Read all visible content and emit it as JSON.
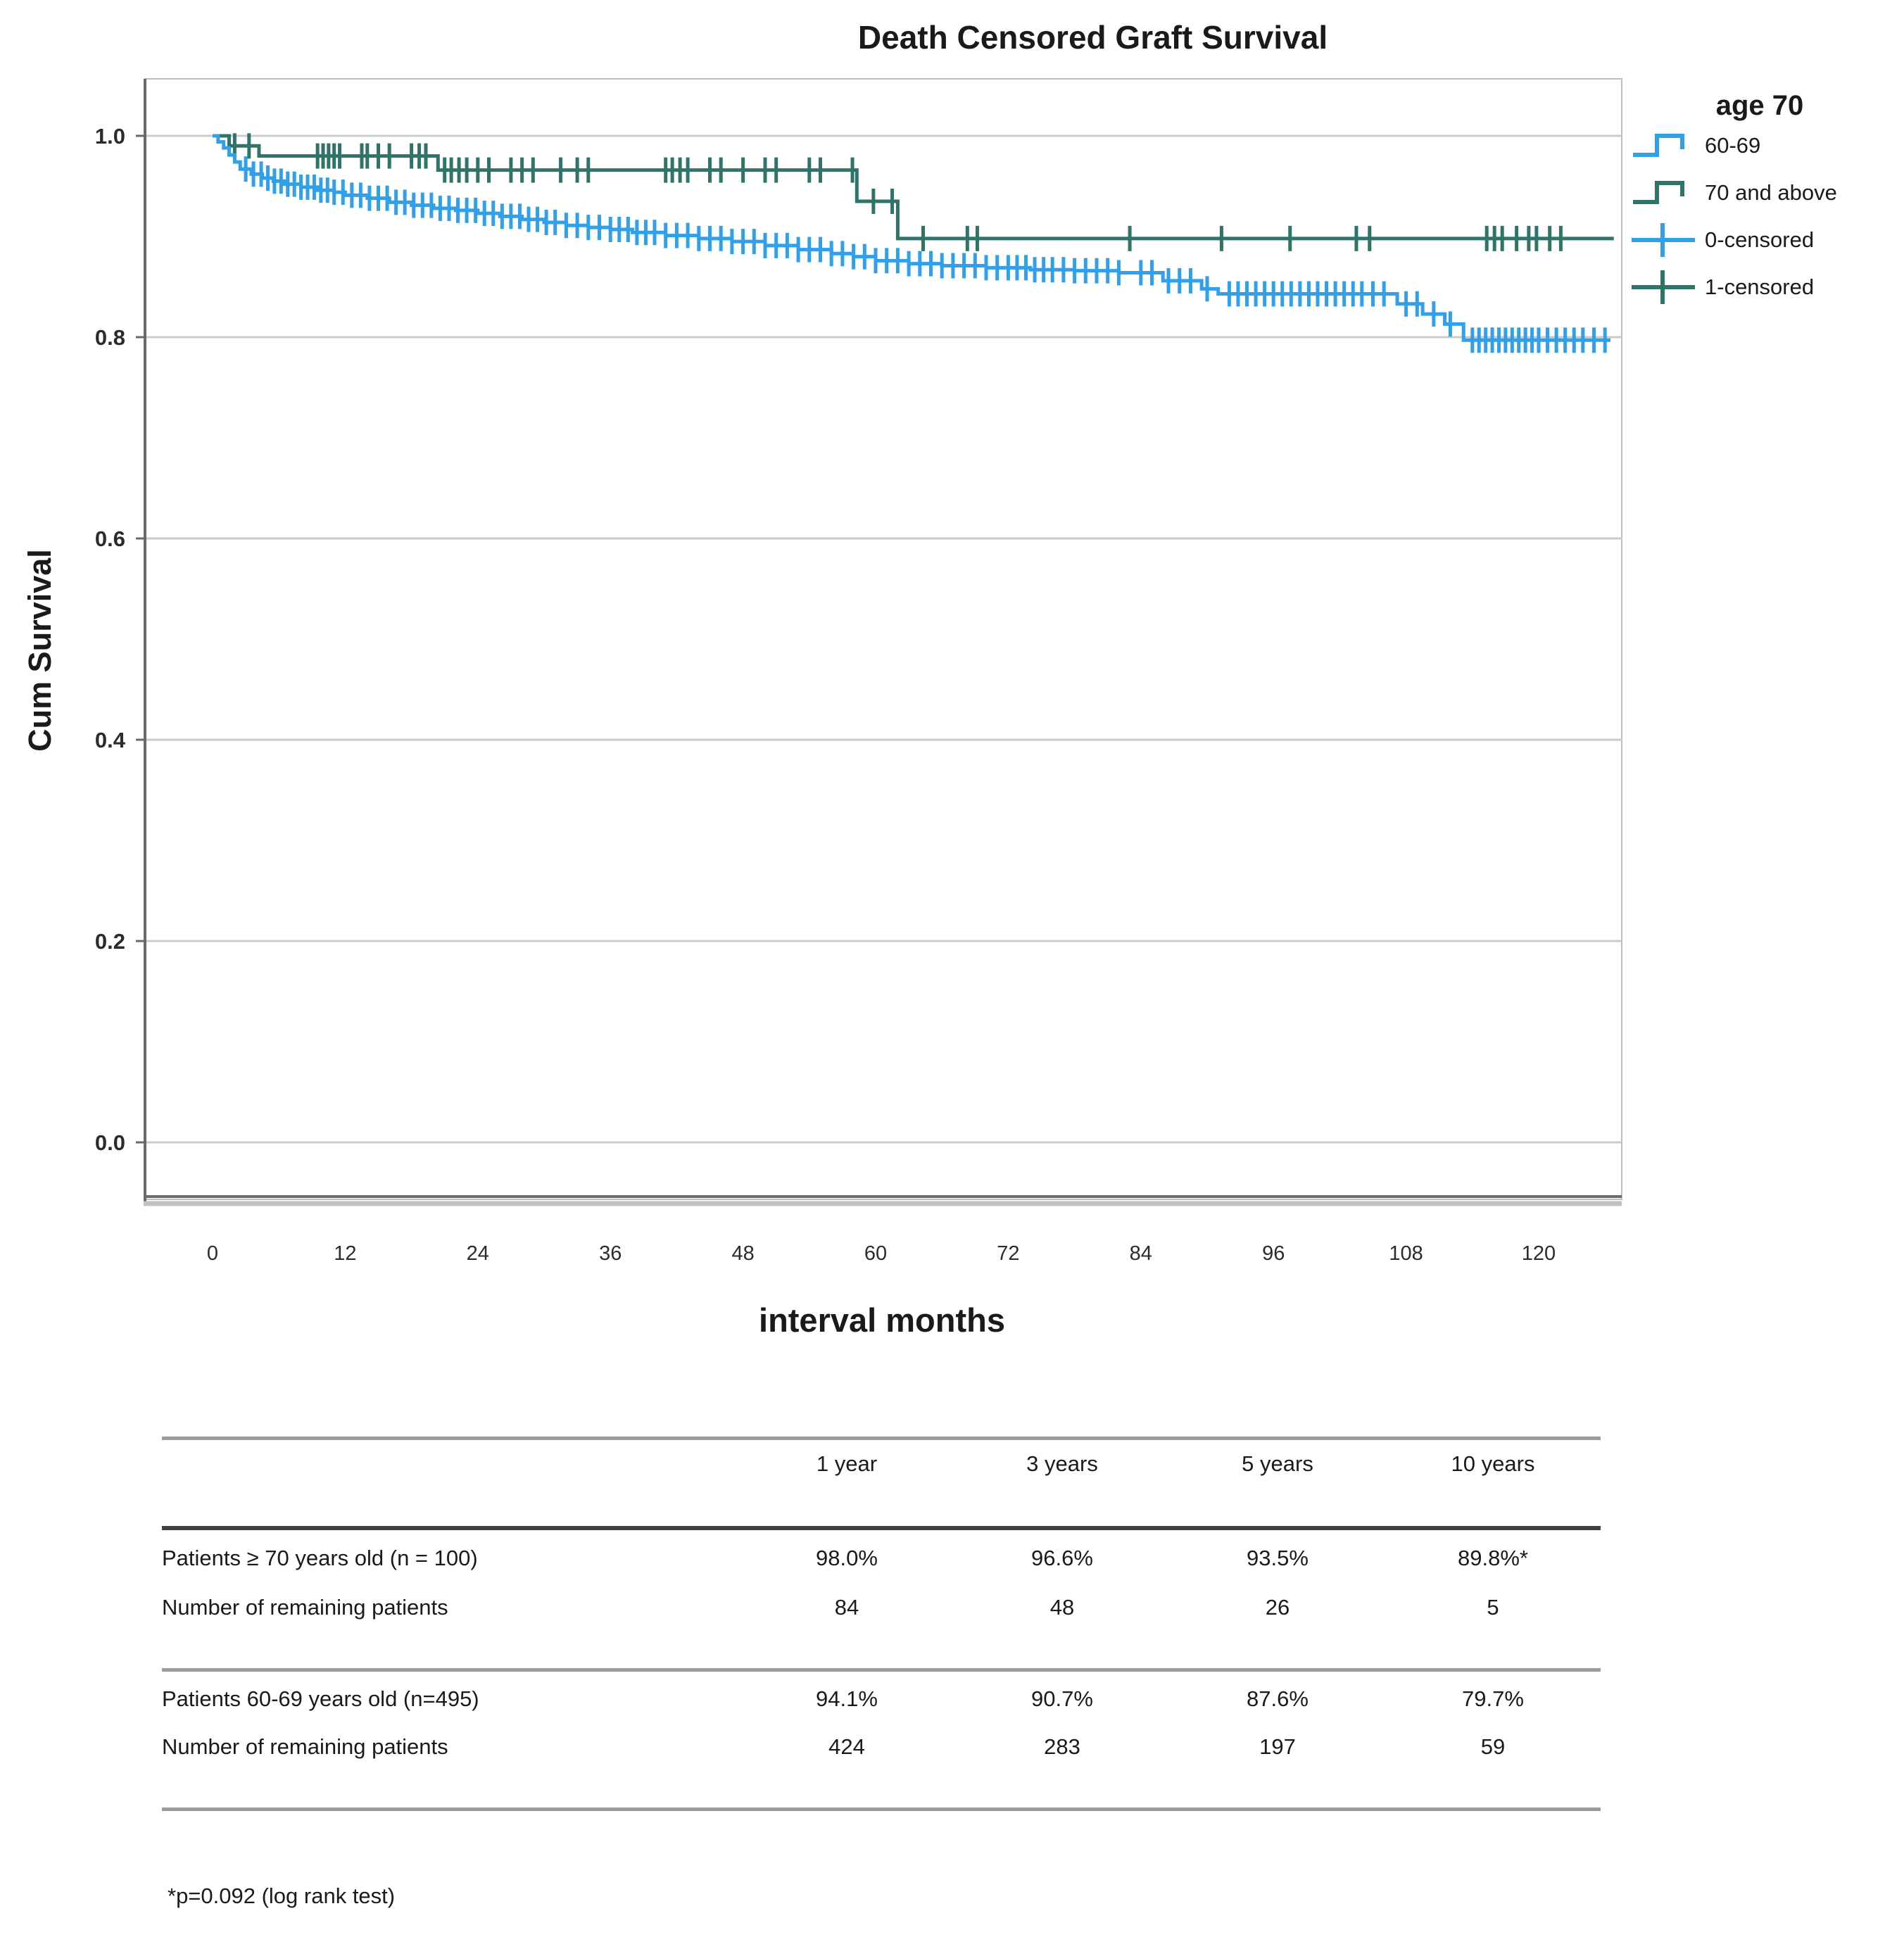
{
  "title": "Death Censored Graft Survival",
  "y_axis": {
    "label": "Cum Survival",
    "ticks": [
      "1.0",
      "0.8",
      "0.6",
      "0.4",
      "0.2",
      "0.0"
    ]
  },
  "x_axis": {
    "label": "interval months",
    "ticks": [
      "0",
      "12",
      "24",
      "36",
      "48",
      "60",
      "72",
      "84",
      "96",
      "108",
      "120"
    ]
  },
  "legend": {
    "title": "age 70",
    "entries": [
      {
        "label": "60-69",
        "color": "#2FA0E9",
        "glyph": "step-line"
      },
      {
        "label": "70 and above",
        "color": "#2F7468",
        "glyph": "step-line"
      },
      {
        "label": "0-censored",
        "color": "#2FA0E9",
        "glyph": "censor-cross"
      },
      {
        "label": "1-censored",
        "color": "#2F7468",
        "glyph": "censor-cross"
      }
    ]
  },
  "chart_data": {
    "type": "line",
    "subtype": "kaplan_meier_step",
    "title": "Death Censored Graft Survival",
    "xlabel": "interval months",
    "ylabel": "Cum Survival",
    "xlim": [
      0,
      126.8
    ],
    "ylim": [
      0,
      1.0
    ],
    "x_ticks": [
      0,
      12,
      24,
      36,
      48,
      60,
      72,
      84,
      96,
      108,
      120
    ],
    "y_ticks": [
      1.0,
      0.8,
      0.6,
      0.4,
      0.2,
      0.0
    ],
    "grid": "horizontal",
    "legend_position": "top-right",
    "series": [
      {
        "name": "60-69",
        "color": "#2FA0E9",
        "steps": [
          [
            0,
            1.0
          ],
          [
            0.5,
            0.994
          ],
          [
            1,
            0.988
          ],
          [
            1.5,
            0.981
          ],
          [
            2,
            0.974
          ],
          [
            2.5,
            0.967
          ],
          [
            3.5,
            0.962
          ],
          [
            4.5,
            0.958
          ],
          [
            5.5,
            0.955
          ],
          [
            6.5,
            0.952
          ],
          [
            8,
            0.949
          ],
          [
            9.5,
            0.946
          ],
          [
            11,
            0.944
          ],
          [
            12,
            0.941
          ],
          [
            14,
            0.938
          ],
          [
            16,
            0.934
          ],
          [
            18,
            0.931
          ],
          [
            20,
            0.928
          ],
          [
            22,
            0.926
          ],
          [
            24,
            0.923
          ],
          [
            26,
            0.92
          ],
          [
            28,
            0.917
          ],
          [
            30,
            0.914
          ],
          [
            32,
            0.911
          ],
          [
            34,
            0.909
          ],
          [
            36,
            0.907
          ],
          [
            38,
            0.904
          ],
          [
            41,
            0.901
          ],
          [
            44,
            0.898
          ],
          [
            47,
            0.895
          ],
          [
            50,
            0.891
          ],
          [
            53,
            0.887
          ],
          [
            56,
            0.883
          ],
          [
            58,
            0.88
          ],
          [
            60,
            0.876
          ],
          [
            63,
            0.873
          ],
          [
            66,
            0.871
          ],
          [
            70,
            0.869
          ],
          [
            74,
            0.867
          ],
          [
            78,
            0.866
          ],
          [
            82,
            0.864
          ],
          [
            86,
            0.856
          ],
          [
            89.5,
            0.848
          ],
          [
            91,
            0.843
          ],
          [
            107.2,
            0.833
          ],
          [
            109.5,
            0.823
          ],
          [
            111.5,
            0.813
          ],
          [
            113.2,
            0.797
          ],
          [
            126.5,
            0.797
          ]
        ],
        "censor_months": [
          3,
          3.7,
          4.4,
          5,
          5.6,
          6.2,
          6.8,
          7.4,
          8,
          8.6,
          9.2,
          9.8,
          10.4,
          11,
          11.8,
          12.6,
          13.4,
          14.2,
          15,
          15.8,
          16.6,
          17.4,
          18.2,
          19,
          19.8,
          20.6,
          21.4,
          22.2,
          23,
          23.8,
          24.6,
          25.4,
          26.2,
          27,
          27.8,
          28.6,
          29.4,
          30.2,
          31,
          32,
          33,
          34,
          35,
          36,
          36.8,
          37.6,
          38.4,
          39.2,
          40,
          41,
          42,
          43,
          44,
          45,
          46,
          47,
          48,
          49,
          50,
          51,
          52,
          53,
          54,
          55,
          56,
          57,
          58,
          59,
          60,
          61,
          62,
          63,
          64,
          65,
          66,
          67,
          68,
          69,
          70,
          71,
          72,
          72.8,
          73.6,
          74.4,
          75.2,
          76,
          77,
          78,
          79,
          80,
          81,
          82,
          84,
          85,
          86.5,
          87.5,
          88.5,
          90,
          92,
          92.8,
          93.6,
          94.4,
          95.2,
          96,
          96.8,
          97.6,
          98.4,
          99.2,
          100,
          100.8,
          101.6,
          102.4,
          103.2,
          104,
          105,
          106,
          108,
          109,
          110.5,
          112,
          114,
          114.6,
          115.2,
          115.8,
          116.4,
          117,
          117.6,
          118.2,
          118.8,
          119.4,
          120,
          120.8,
          121.6,
          122.4,
          123.2,
          124,
          125,
          126
        ]
      },
      {
        "name": "70 and above",
        "color": "#2F7468",
        "steps": [
          [
            0,
            1.0
          ],
          [
            1.5,
            0.99
          ],
          [
            4.2,
            0.98
          ],
          [
            20.4,
            0.966
          ],
          [
            58.3,
            0.935
          ],
          [
            62,
            0.898
          ],
          [
            126.8,
            0.898
          ]
        ],
        "censor_months": [
          2,
          3.3,
          9.5,
          10,
          10.5,
          11,
          11.5,
          13.5,
          14,
          15,
          16,
          18,
          18.7,
          19.3,
          21,
          21.6,
          22.3,
          23,
          24,
          25,
          27,
          28,
          29,
          31.5,
          33,
          34,
          41,
          41.6,
          42.3,
          43,
          45,
          46,
          48,
          50,
          51,
          54,
          55,
          57.9,
          59.8,
          61.5,
          64.3,
          68.3,
          69.2,
          83,
          91.3,
          97.5,
          103.5,
          104.7,
          115.3,
          116,
          116.7,
          118,
          119.1,
          119.8,
          121,
          122
        ]
      }
    ],
    "annotation": "*p=0.092 (log rank test)"
  },
  "table": {
    "headers": [
      "1 year",
      "3 years",
      "5 years",
      "10 years"
    ],
    "rows": [
      {
        "label": "Patients ≥  70 years old (n = 100)",
        "values": [
          "98.0%",
          "96.6%",
          "93.5%",
          "89.8%*"
        ]
      },
      {
        "label": "Number of remaining patients",
        "values": [
          "84",
          "48",
          "26",
          "5"
        ]
      },
      {
        "label": "Patients 60-69 years old (n=495)",
        "values": [
          "94.1%",
          "90.7%",
          "87.6%",
          "79.7%"
        ]
      },
      {
        "label": "Number of remaining patients",
        "values": [
          "424",
          "283",
          "197",
          "59"
        ]
      }
    ]
  },
  "footnote": "*p=0.092 (log rank test)"
}
